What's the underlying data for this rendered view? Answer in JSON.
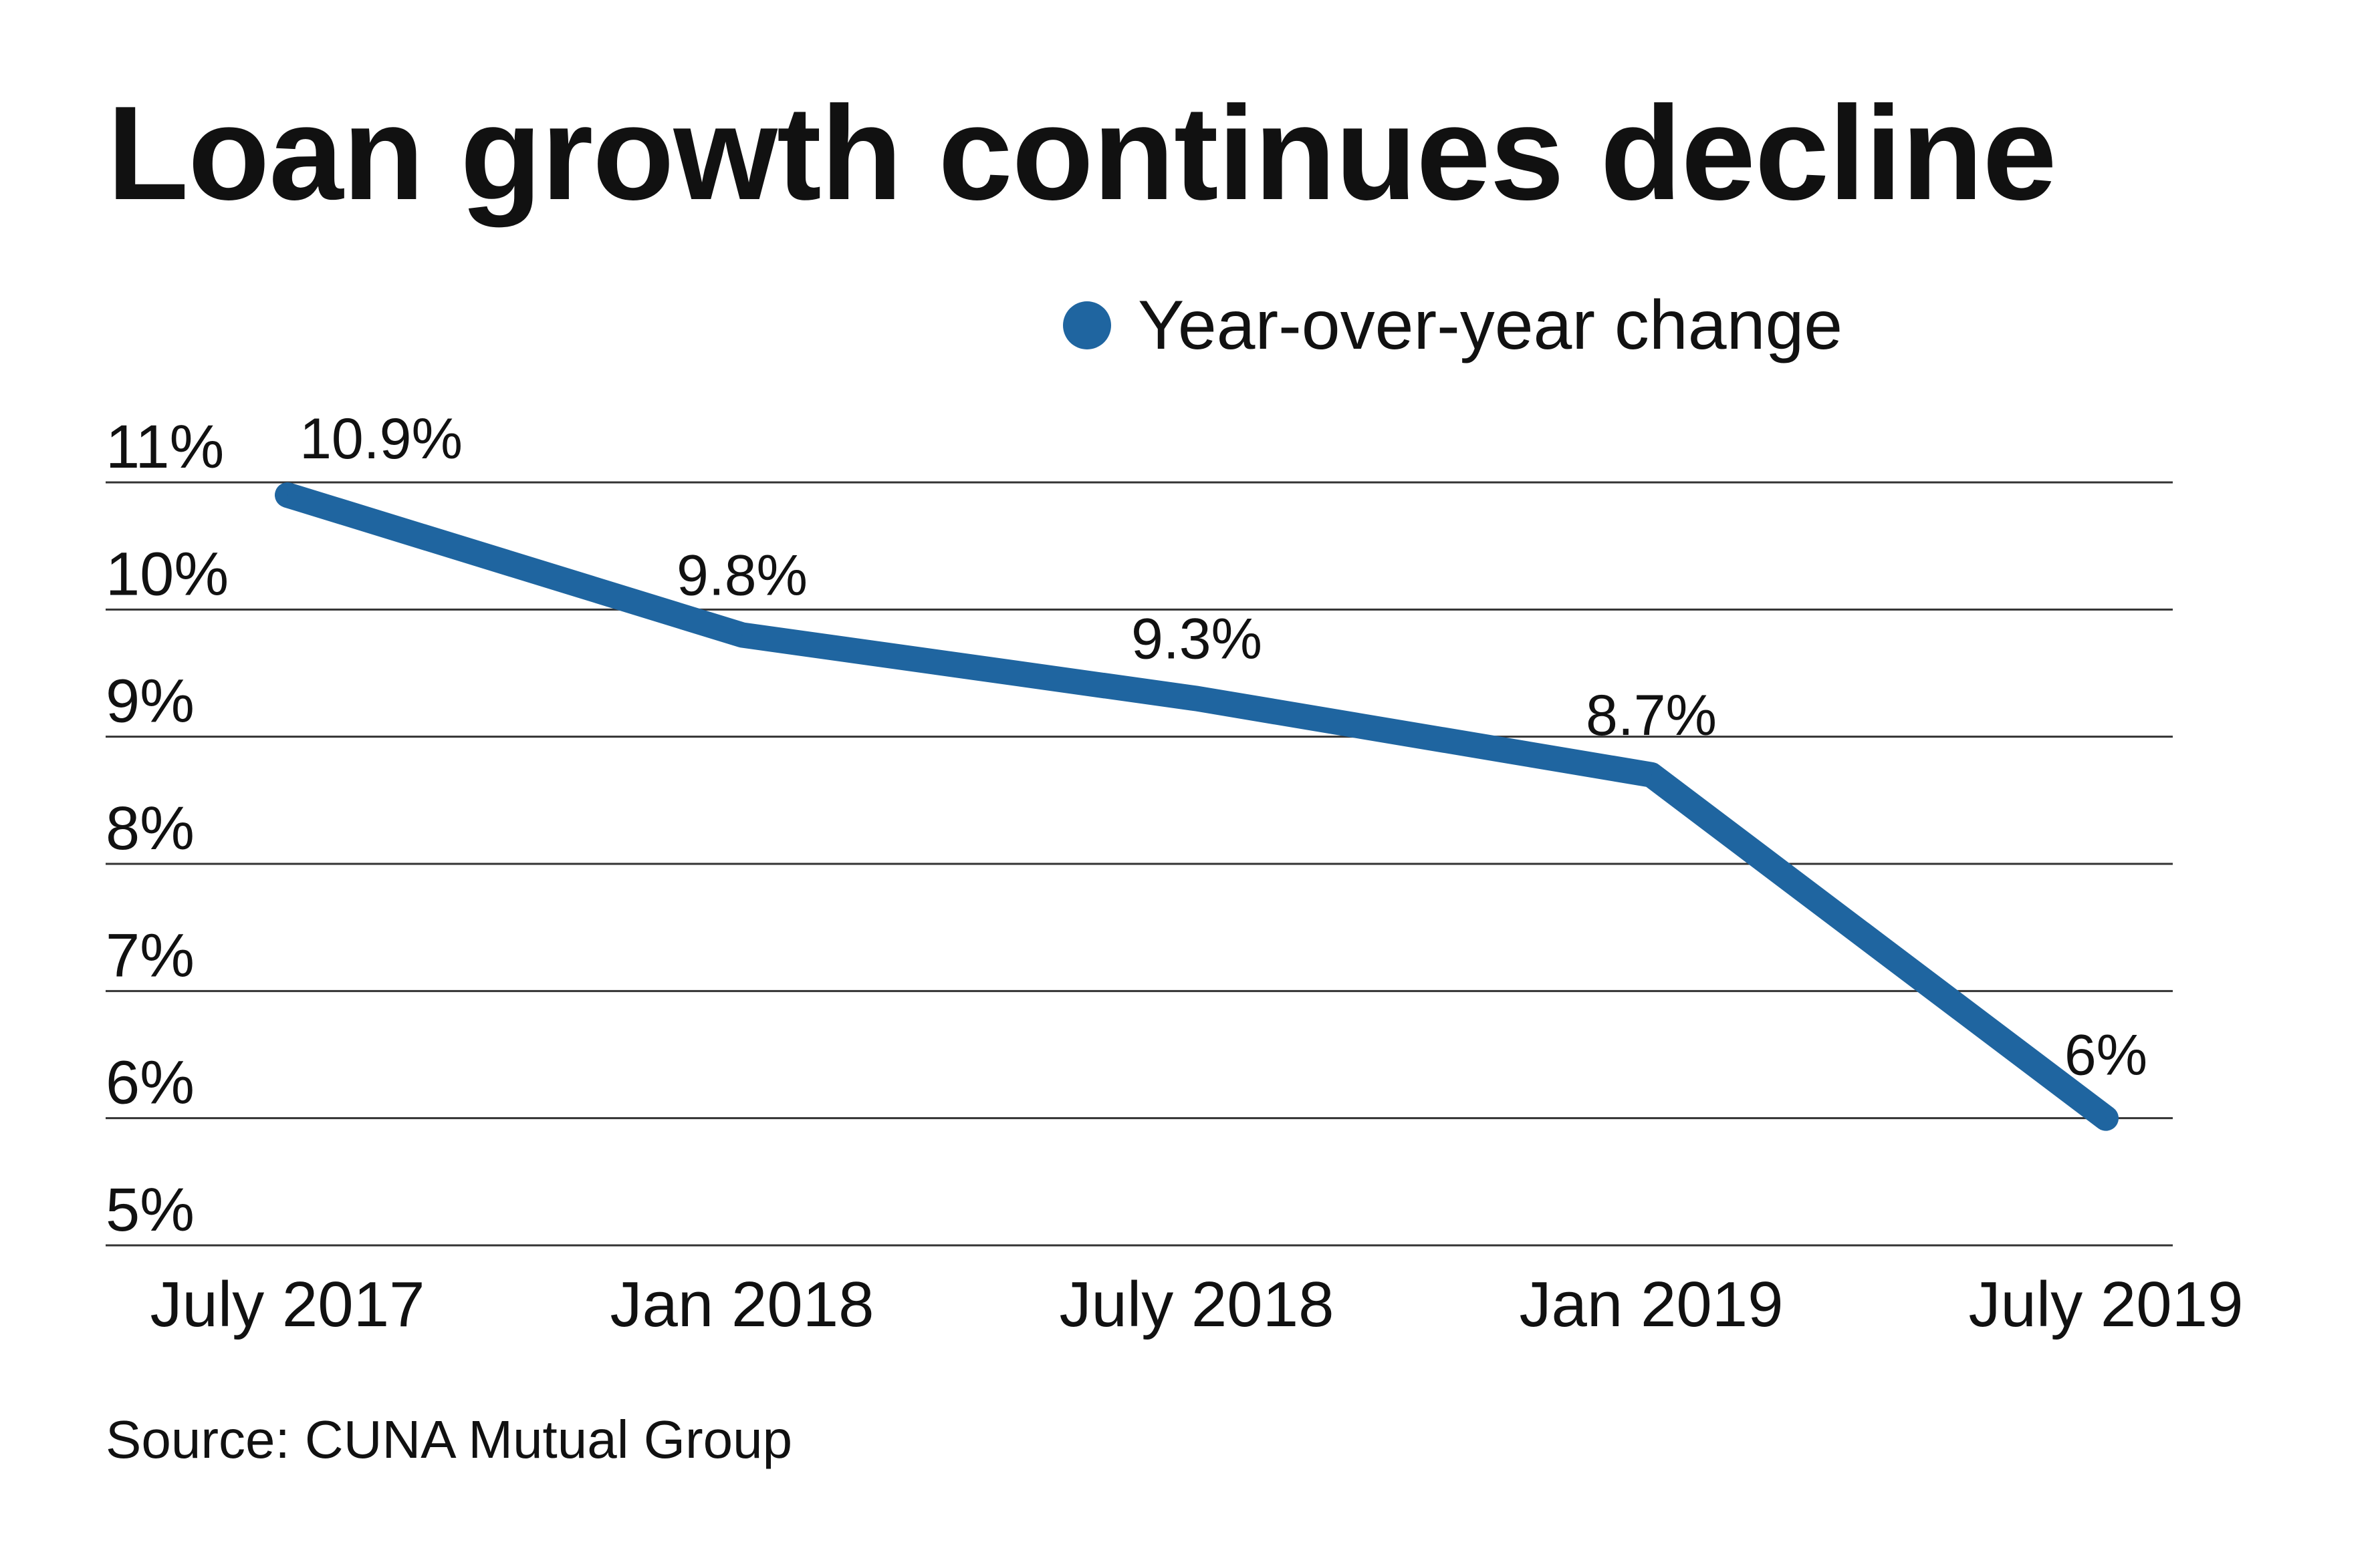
{
  "title": "Loan growth continues decline",
  "source": "Source: CUNA Mutual Group",
  "colors": {
    "series": "#1f65a0",
    "grid": "#333333",
    "text": "#111111"
  },
  "chart_data": {
    "type": "line",
    "categories": [
      "July 2017",
      "Jan 2018",
      "July 2018",
      "Jan 2019",
      "July 2019"
    ],
    "series": [
      {
        "name": "Year-over-year change",
        "values": [
          10.9,
          9.8,
          9.3,
          8.7,
          6.0
        ]
      }
    ],
    "data_labels": [
      "10.9%",
      "9.8%",
      "9.3%",
      "8.7%",
      "6%"
    ],
    "y_ticks": [
      11,
      10,
      9,
      8,
      7,
      6,
      5
    ],
    "y_tick_labels": [
      "11%",
      "10%",
      "9%",
      "8%",
      "7%",
      "6%",
      "5%"
    ],
    "ylim": [
      5,
      11
    ],
    "grid": true,
    "legend": "top-right"
  }
}
